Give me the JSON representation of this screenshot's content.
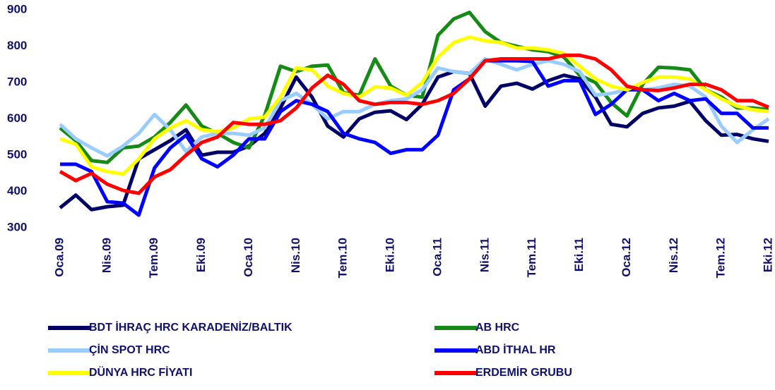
{
  "chart_data": {
    "type": "line",
    "categories": [
      "Oca.09",
      null,
      null,
      "Nis.09",
      null,
      null,
      "Tem.09",
      null,
      null,
      "Eki.09",
      null,
      null,
      "Oca.10",
      null,
      null,
      "Nis.10",
      null,
      null,
      "Tem.10",
      null,
      null,
      "Eki.10",
      null,
      null,
      "Oca.11",
      null,
      null,
      "Nis.11",
      null,
      null,
      "Tem.11",
      null,
      null,
      "Eki.11",
      null,
      null,
      "Oca.12",
      null,
      null,
      "Nis.12",
      null,
      null,
      "Tem.12",
      null,
      null,
      "Eki.12"
    ],
    "ylim": [
      300,
      900
    ],
    "yticks": [
      300,
      400,
      500,
      600,
      700,
      800,
      900
    ],
    "series": [
      {
        "name": "BDT İHRAÇ HRC KARADENİZ/BALTIK",
        "color": "#000066",
        "values": [
          355,
          390,
          350,
          358,
          362,
          490,
          515,
          540,
          570,
          500,
          508,
          508,
          525,
          560,
          630,
          715,
          660,
          580,
          550,
          600,
          618,
          622,
          598,
          640,
          715,
          730,
          725,
          635,
          690,
          698,
          682,
          705,
          720,
          710,
          660,
          585,
          578,
          615,
          630,
          635,
          648,
          595,
          555,
          557,
          545,
          538
        ]
      },
      {
        "name": "AB HRC",
        "color": "#168a16",
        "values": [
          575,
          540,
          485,
          480,
          520,
          525,
          550,
          590,
          638,
          580,
          560,
          535,
          520,
          610,
          745,
          730,
          745,
          748,
          672,
          665,
          765,
          690,
          665,
          660,
          830,
          875,
          893,
          840,
          810,
          800,
          790,
          785,
          770,
          720,
          700,
          645,
          608,
          695,
          742,
          740,
          735,
          680,
          660,
          630,
          630,
          625
        ]
      },
      {
        "name": "ÇİN SPOT HRC",
        "color": "#99ccff",
        "values": [
          585,
          545,
          520,
          498,
          525,
          560,
          612,
          570,
          510,
          550,
          560,
          560,
          555,
          575,
          650,
          670,
          640,
          600,
          620,
          620,
          640,
          650,
          655,
          680,
          740,
          730,
          725,
          765,
          750,
          735,
          750,
          760,
          750,
          730,
          665,
          670,
          680,
          680,
          685,
          695,
          690,
          660,
          580,
          535,
          570,
          600
        ]
      },
      {
        "name": "ABD İTHAL HR",
        "color": "#0000ff",
        "values": [
          475,
          475,
          455,
          372,
          368,
          335,
          465,
          520,
          555,
          490,
          468,
          500,
          545,
          545,
          620,
          650,
          640,
          620,
          560,
          545,
          535,
          505,
          515,
          515,
          555,
          680,
          710,
          760,
          760,
          760,
          758,
          690,
          705,
          705,
          612,
          640,
          680,
          680,
          650,
          670,
          650,
          655,
          615,
          615,
          575,
          575
        ]
      },
      {
        "name": "DÜNYA HRC FİYATI",
        "color": "#ffff00",
        "values": [
          545,
          530,
          468,
          455,
          448,
          490,
          545,
          575,
          595,
          570,
          565,
          575,
          600,
          605,
          660,
          740,
          735,
          690,
          670,
          660,
          688,
          685,
          665,
          700,
          770,
          810,
          825,
          815,
          810,
          795,
          795,
          790,
          780,
          745,
          710,
          690,
          680,
          700,
          715,
          715,
          710,
          680,
          655,
          635,
          625,
          620
        ]
      },
      {
        "name": "ERDEMİR GRUBU",
        "color": "#ff0000",
        "values": [
          455,
          430,
          450,
          420,
          403,
          395,
          440,
          460,
          500,
          535,
          550,
          590,
          585,
          585,
          595,
          630,
          685,
          720,
          695,
          650,
          640,
          645,
          645,
          640,
          650,
          670,
          710,
          760,
          765,
          765,
          765,
          765,
          775,
          775,
          765,
          735,
          690,
          680,
          678,
          685,
          695,
          695,
          680,
          650,
          650,
          632
        ]
      }
    ]
  }
}
